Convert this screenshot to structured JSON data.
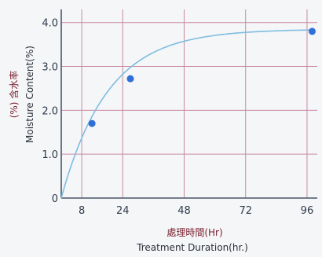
{
  "chart_data": {
    "type": "scatter",
    "title": "",
    "xlabel_cn": "處理時間(Hr)",
    "xlabel_en": "Treatment Duration(hr.)",
    "ylabel_cn": "(%) 含水率",
    "ylabel_en": "Moisture Content(%)",
    "xlim": [
      0,
      100
    ],
    "ylim": [
      0,
      4.3
    ],
    "x_ticks": [
      8,
      24,
      48,
      72,
      96
    ],
    "x_tick_labels": [
      "8",
      "24",
      "48",
      "72",
      "96"
    ],
    "y_ticks": [
      0,
      1.0,
      2.0,
      3.0,
      4.0
    ],
    "y_tick_labels": [
      "0",
      "1.0",
      "2.0",
      "3.0",
      "4.0"
    ],
    "grid": true,
    "points": [
      {
        "x": 12,
        "y": 1.7
      },
      {
        "x": 27,
        "y": 2.72
      },
      {
        "x": 98,
        "y": 3.8
      }
    ],
    "fit_curve": {
      "a": 3.85,
      "k": 0.055
    },
    "colors": {
      "grid": "#c98aa3",
      "axis": "#4a5566",
      "curve": "#7fbde0",
      "point": "#2f6fd6"
    }
  }
}
